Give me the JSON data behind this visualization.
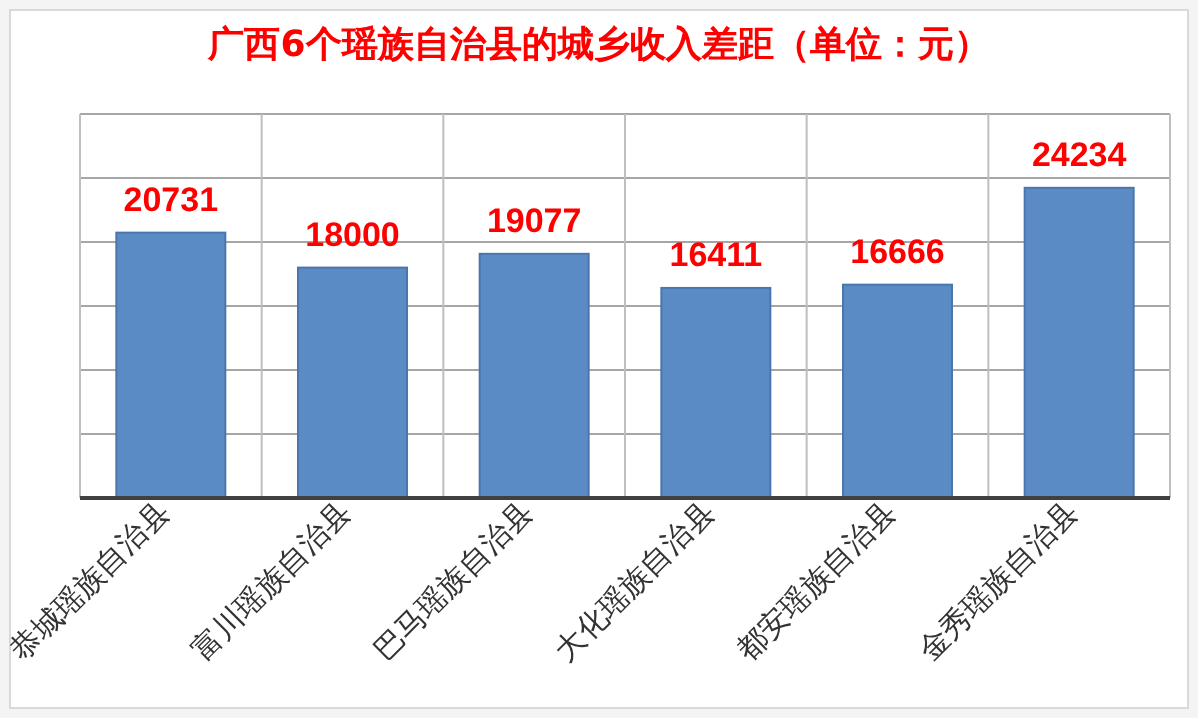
{
  "chart_data": {
    "type": "bar",
    "title": "广西6个瑶族自治县的城乡收入差距（单位：元）",
    "categories": [
      "恭城瑶族自治县",
      "富川瑶族自治县",
      "巴马瑶族自治县",
      "大化瑶族自治县",
      "都安瑶族自治县",
      "金秀瑶族自治县"
    ],
    "values": [
      20731,
      18000,
      19077,
      16411,
      16666,
      24234
    ],
    "color": "#5b8bc5",
    "ylim": [
      0,
      30000
    ],
    "yticks": [
      {
        "value": 0,
        "label": null
      },
      {
        "value": 5000,
        "label": null
      },
      {
        "value": 10000,
        "label": null
      },
      {
        "value": 15000,
        "label": null
      },
      {
        "value": 20000,
        "label": null
      },
      {
        "value": 25000,
        "label": null
      },
      {
        "value": 30000,
        "label": null
      }
    ],
    "tick_labels": "x",
    "grid": true,
    "data_labels": true
  }
}
